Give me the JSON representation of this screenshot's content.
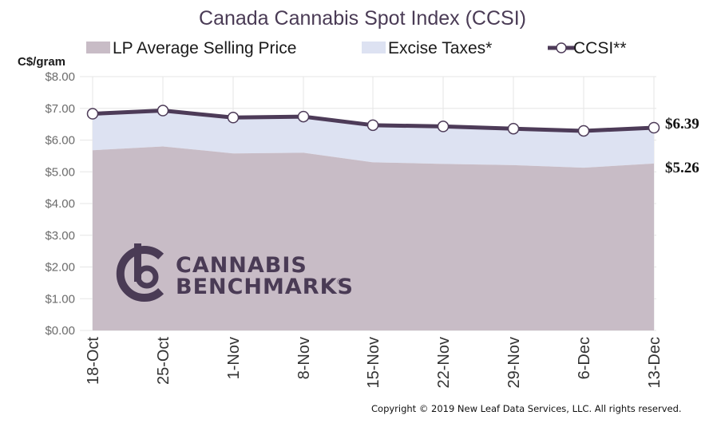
{
  "colors": {
    "lp_area": "#c8bcc6",
    "excise_area": "#dde2f2",
    "ccsi_line": "#4d3b58",
    "grid": "#e6e6e6",
    "logo": "#4a3b55"
  },
  "logo": {
    "line1": "CANNABIS",
    "line2": "BENCHMARKS",
    "mark": "®"
  },
  "copyright": "Copyright © 2019 New Leaf Data Services, LLC. All rights reserved.",
  "end_labels": {
    "ccsi": "$6.39",
    "lp": "$5.26"
  },
  "chart_data": {
    "type": "area",
    "title": "Canada Cannabis Spot Index (CCSI)",
    "ylabel": "C$/gram",
    "xlabel": "",
    "categories": [
      "18-Oct",
      "25-Oct",
      "1-Nov",
      "8-Nov",
      "15-Nov",
      "22-Nov",
      "29-Nov",
      "6-Dec",
      "13-Dec"
    ],
    "yticks": [
      "$0.00",
      "$1.00",
      "$2.00",
      "$3.00",
      "$4.00",
      "$5.00",
      "$6.00",
      "$7.00",
      "$8.00"
    ],
    "ylim": [
      0,
      8
    ],
    "grid": true,
    "legend_position": "top",
    "series": [
      {
        "name": "LP Average Selling Price",
        "kind": "area",
        "values": [
          5.68,
          5.8,
          5.58,
          5.6,
          5.3,
          5.25,
          5.21,
          5.13,
          5.26
        ]
      },
      {
        "name": "Excise Taxes*",
        "kind": "stacked-area",
        "values": [
          1.15,
          1.13,
          1.13,
          1.14,
          1.17,
          1.18,
          1.15,
          1.16,
          1.13
        ]
      },
      {
        "name": "CCSI**",
        "kind": "line",
        "values": [
          6.83,
          6.93,
          6.71,
          6.74,
          6.47,
          6.43,
          6.36,
          6.29,
          6.39
        ]
      }
    ]
  }
}
